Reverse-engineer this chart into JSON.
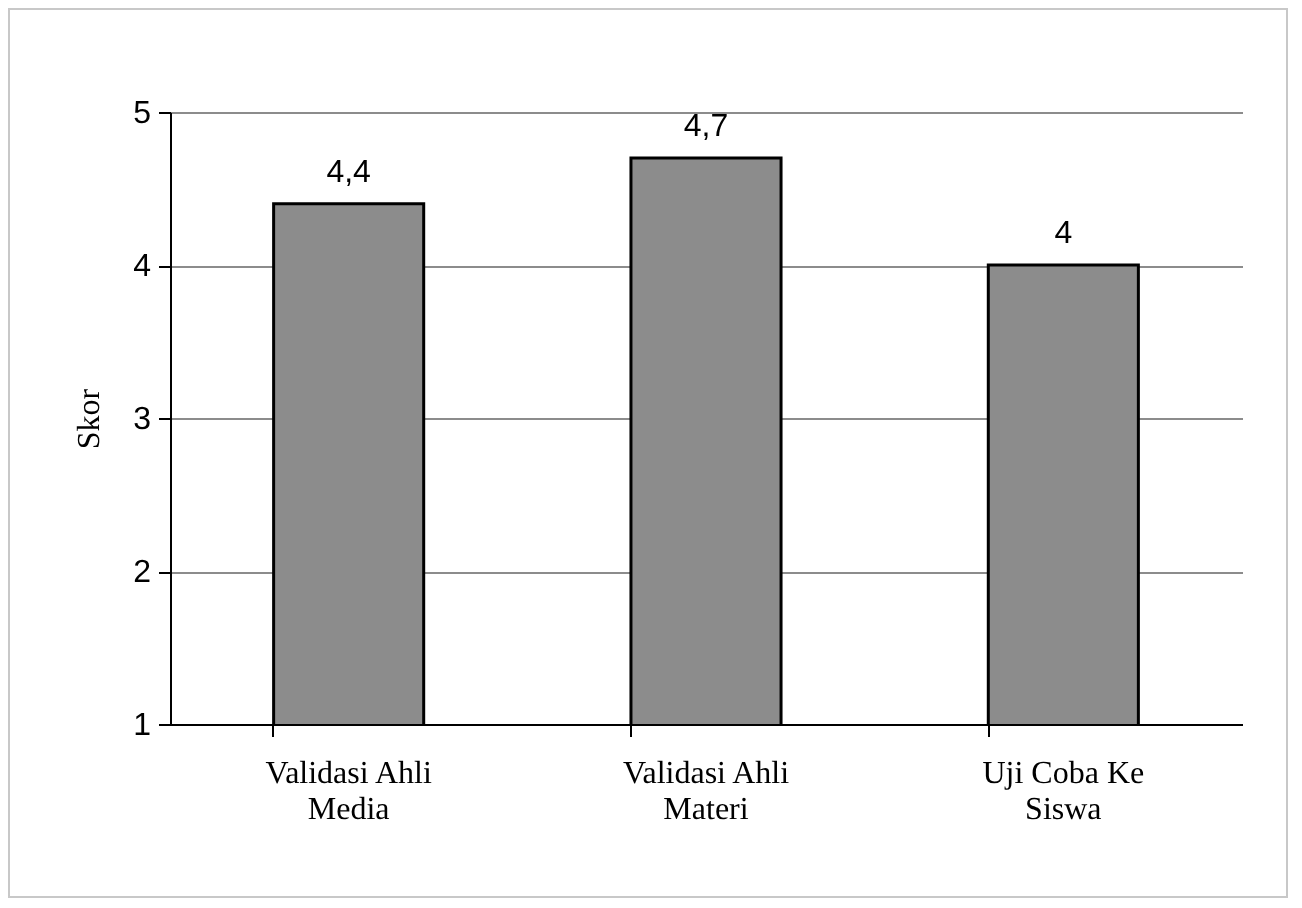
{
  "chart_data": {
    "type": "bar",
    "ylabel": "Skor",
    "categories": [
      "Validasi Ahli Media",
      "Validasi Ahli Materi",
      "Uji Coba Ke Siswa"
    ],
    "values": [
      4.4,
      4.7,
      4
    ],
    "value_labels": [
      "4,4",
      "4,7",
      "4"
    ],
    "color": "#8c8c8c",
    "ylim": [
      1,
      5
    ],
    "yticks": [
      1,
      2,
      3,
      4,
      5
    ],
    "grid": "y"
  }
}
